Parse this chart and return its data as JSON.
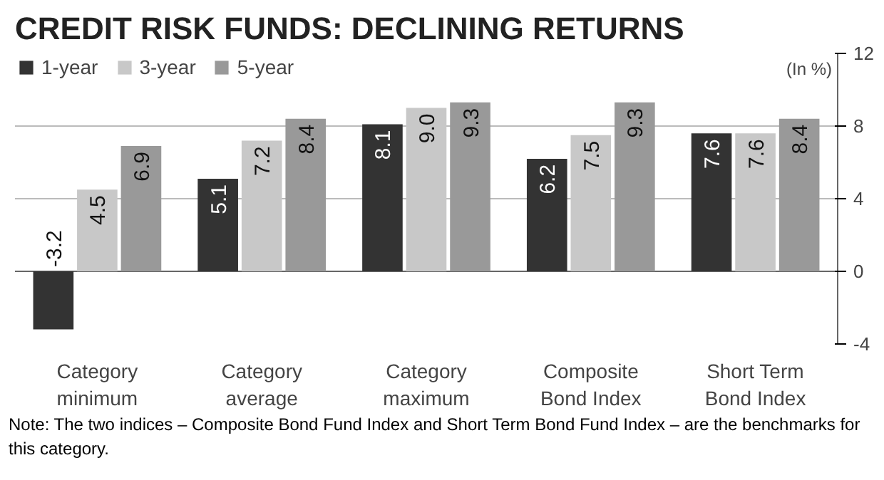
{
  "chart_data": {
    "type": "bar",
    "title": "CREDIT RISK FUNDS: DECLINING RETURNS",
    "ylabel": "(In %)",
    "categories": [
      "Category\nminimum",
      "Category\naverage",
      "Category\nmaximum",
      "Composite\nBond Index",
      "Short Term\nBond Index"
    ],
    "series": [
      {
        "name": "1-year",
        "color": "#333333",
        "values": [
          -3.2,
          5.1,
          8.1,
          6.2,
          7.6
        ],
        "value_labels": [
          "-3.2",
          "5.1",
          "8.1",
          "6.2",
          "7.6"
        ]
      },
      {
        "name": "3-year",
        "color": "#c8c8c8",
        "values": [
          4.5,
          7.2,
          9.0,
          7.5,
          7.6
        ],
        "value_labels": [
          "4.5",
          "7.2",
          "9.0",
          "7.5",
          "7.6"
        ]
      },
      {
        "name": "5-year",
        "color": "#999999",
        "values": [
          6.9,
          8.4,
          9.3,
          9.3,
          8.4
        ],
        "value_labels": [
          "6.9",
          "8.4",
          "9.3",
          "9.3",
          "8.4"
        ]
      }
    ],
    "ylim": [
      -4,
      12
    ],
    "yticks": [
      -4,
      0,
      4,
      8,
      12
    ],
    "grid": "y",
    "legend": "top left",
    "annotations": [
      "Note: The two indices – Composite Bond Fund Index and Short Term Bond Fund Index – are the benchmarks for this category."
    ]
  }
}
